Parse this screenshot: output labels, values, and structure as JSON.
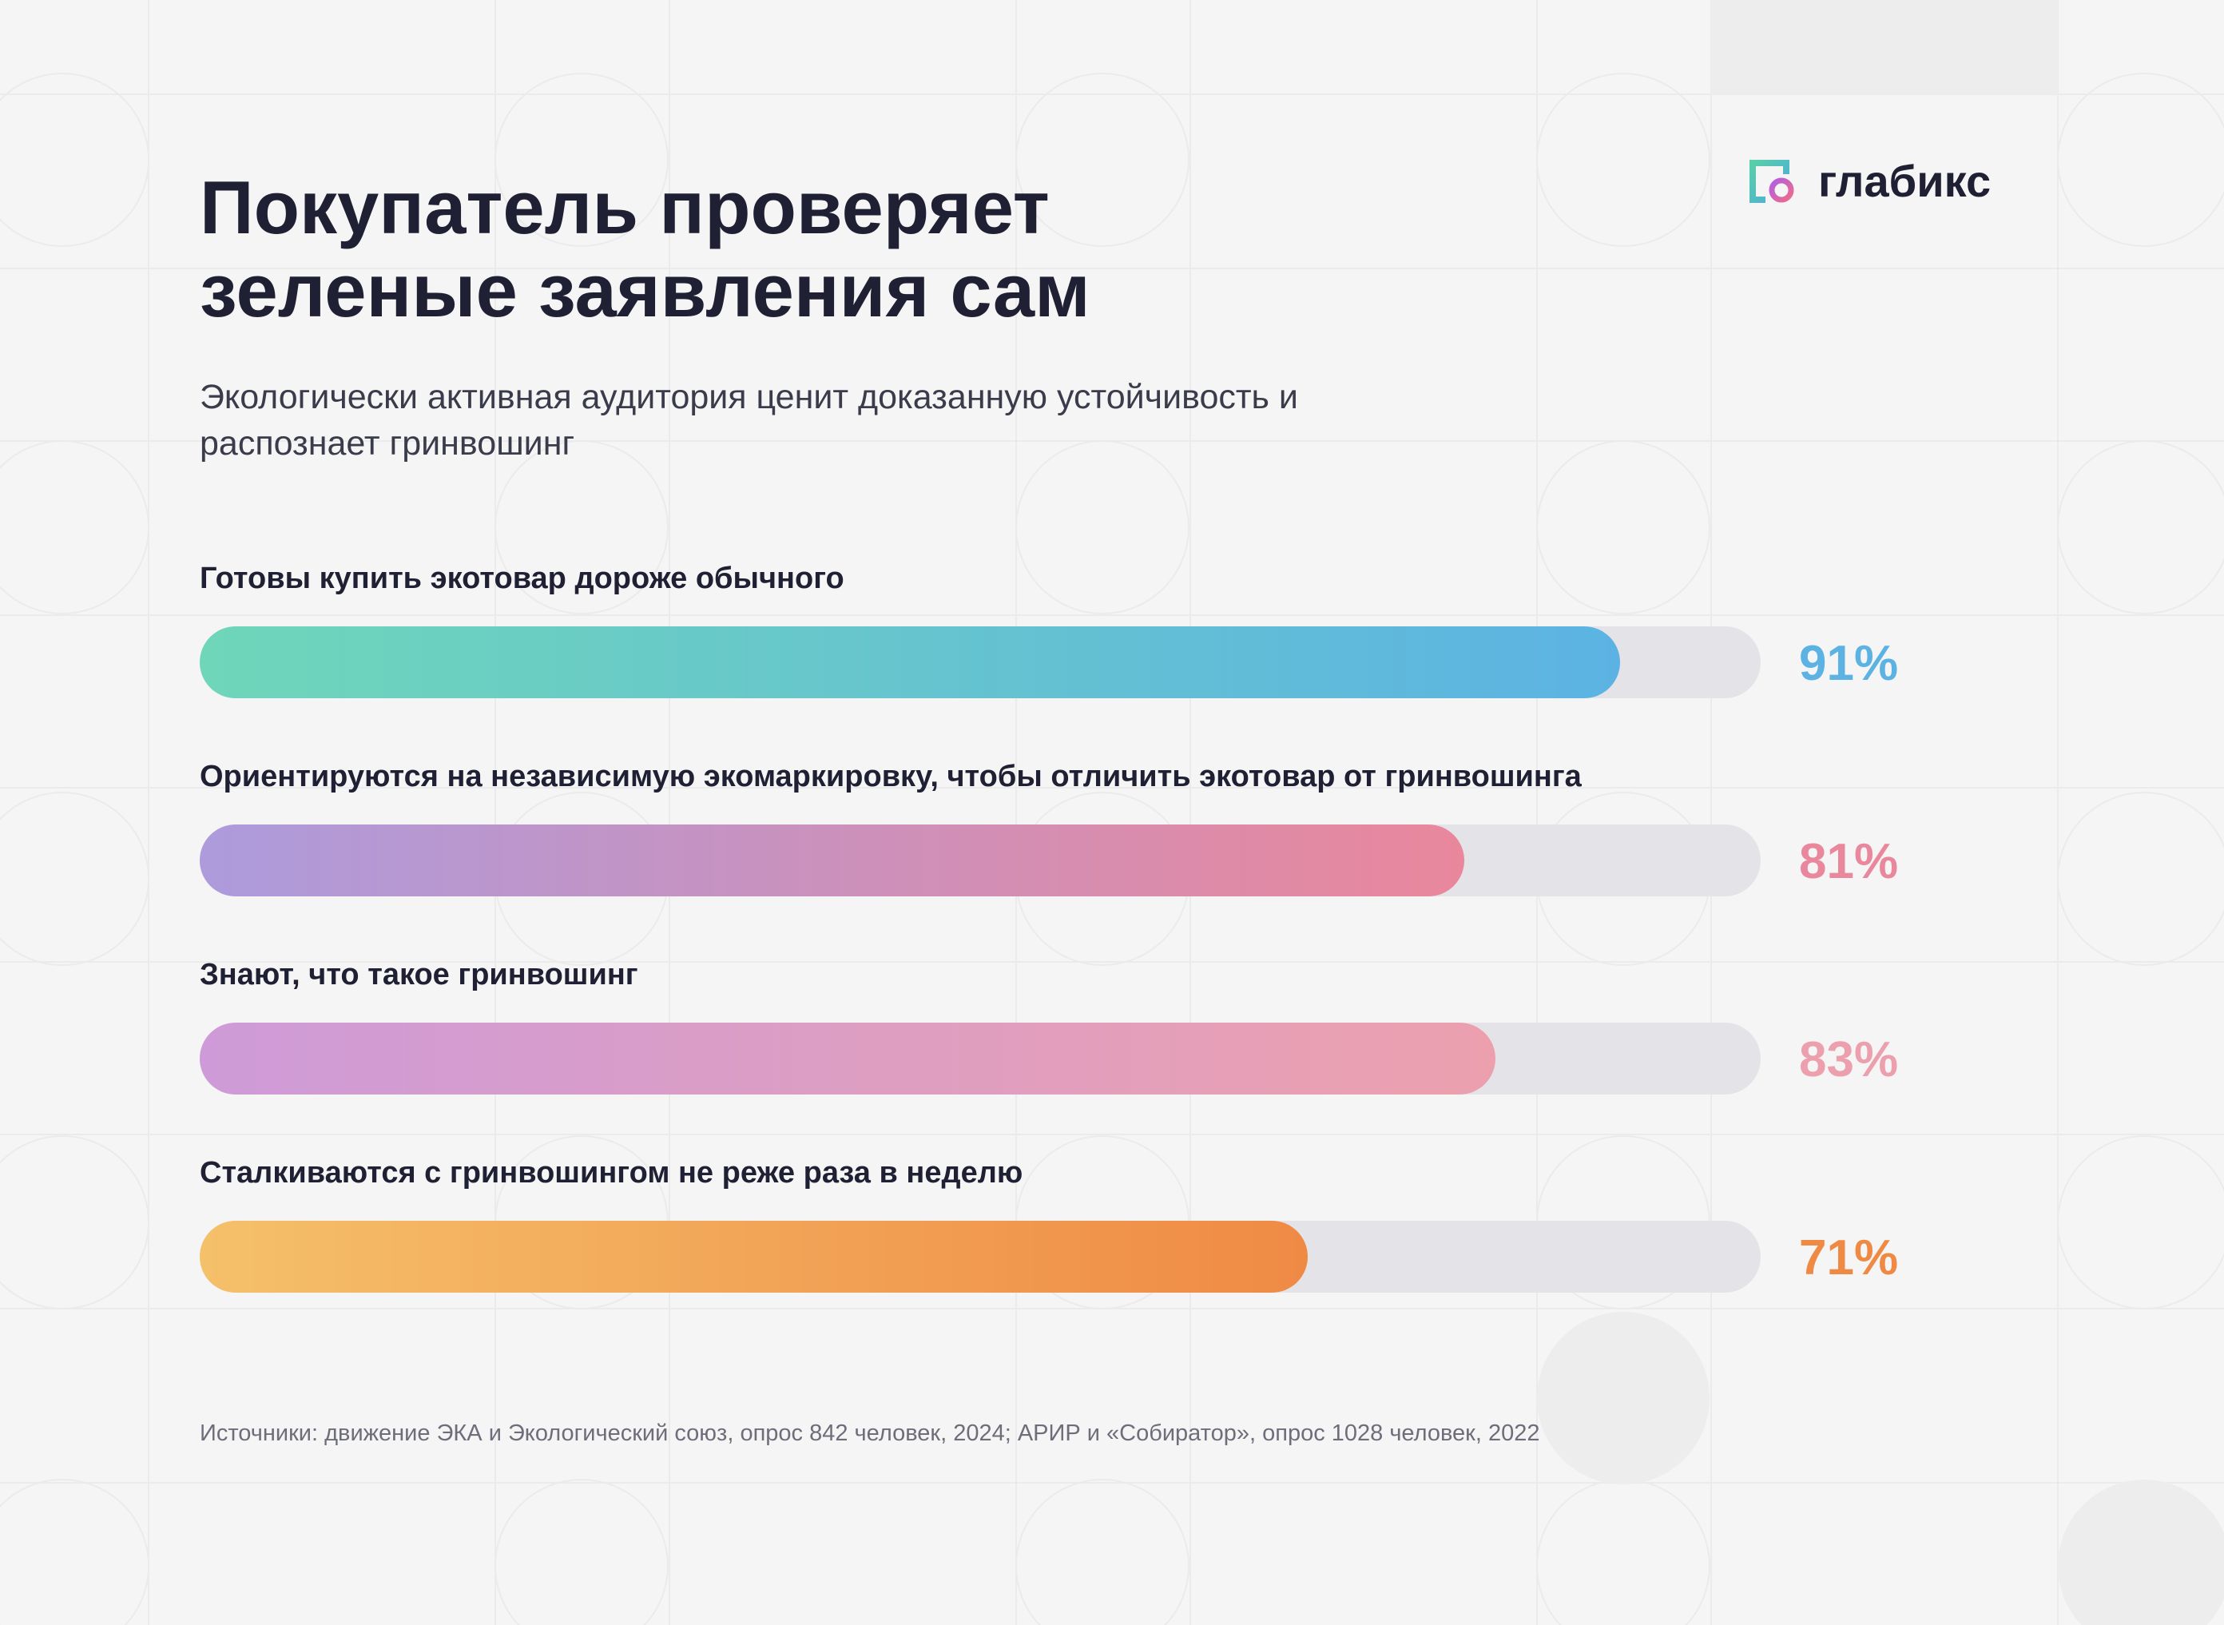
{
  "brand": {
    "name": "глабикс",
    "icon": "glabix-logo-icon"
  },
  "title_line1": "Покупатель проверяет",
  "title_line2": "зеленые заявления сам",
  "subtitle_line1": "Экологически активная аудитория ценит доказанную устойчивость и",
  "subtitle_line2": "распознает гринвошинг",
  "source": "Источники: движение ЭКА и Экологический союз, опрос 842 человек, 2024; АРИР и «Собиратор», опрос 1028 человек, 2022",
  "colors": {
    "background": "#f5f5f5",
    "text": "#1f2033",
    "track": "#e4e4e8"
  },
  "chart_data": {
    "type": "bar",
    "orientation": "horizontal",
    "unit": "%",
    "xlim": [
      0,
      100
    ],
    "bars": [
      {
        "label": "Готовы купить экотовар дороже обычного",
        "value": 91,
        "display": "91%",
        "gradient": [
          "#6fd6b9",
          "#5cb3e3"
        ],
        "value_color": "#5cb3e3"
      },
      {
        "label": "Ориентируются на независимую экомаркировку, чтобы отличить экотовар от гринвошинга",
        "value": 81,
        "display": "81%",
        "gradient": [
          "#ad9bdc",
          "#e9879c"
        ],
        "value_color": "#e9879c"
      },
      {
        "label": "Знают, что такое гринвошинг",
        "value": 83,
        "display": "83%",
        "gradient": [
          "#ce9bd8",
          "#eca0ae"
        ],
        "value_color": "#eca0ae"
      },
      {
        "label": "Сталкиваются с гринвошингом не реже раза в неделю",
        "value": 71,
        "display": "71%",
        "gradient": [
          "#f5c06a",
          "#ef8a45"
        ],
        "value_color": "#ef8a45"
      }
    ]
  }
}
